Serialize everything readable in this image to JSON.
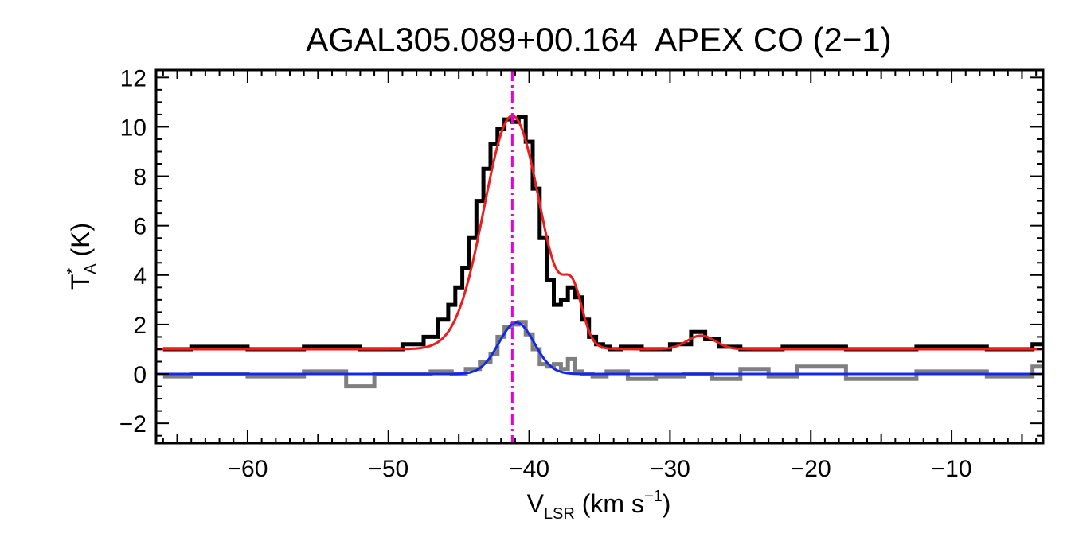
{
  "chart_data": {
    "type": "line",
    "title": "AGAL305.089+00.164  APEX CO (2−1)",
    "xlabel": {
      "main": "V",
      "sub": "LSR",
      "unit_open": " (km s",
      "sup": "−1",
      "unit_close": ")"
    },
    "ylabel": {
      "main": "T",
      "sup": "*",
      "sub": "A",
      "unit": " (K)"
    },
    "xlim": [
      -66.5,
      -3.5
    ],
    "ylim": [
      -2.8,
      12.3
    ],
    "xticks": [
      {
        "value": -60,
        "label": "−60"
      },
      {
        "value": -50,
        "label": "−50"
      },
      {
        "value": -40,
        "label": "−40"
      },
      {
        "value": -30,
        "label": "−30"
      },
      {
        "value": -20,
        "label": "−20"
      },
      {
        "value": -10,
        "label": "−10"
      }
    ],
    "yticks": [
      {
        "value": -2,
        "label": "−2"
      },
      {
        "value": 0,
        "label": "0"
      },
      {
        "value": 2,
        "label": "2"
      },
      {
        "value": 4,
        "label": "4"
      },
      {
        "value": 6,
        "label": "6"
      },
      {
        "value": 8,
        "label": "8"
      },
      {
        "value": 10,
        "label": "10"
      },
      {
        "value": 12,
        "label": "12"
      }
    ],
    "grid": false,
    "vline": {
      "x": -41.2,
      "color": "#e000e0",
      "style": "dash-dot"
    },
    "series": [
      {
        "kind": "spectrum",
        "color": "#000000",
        "x": [
          -66,
          -62,
          -58,
          -54,
          -50,
          -48,
          -47,
          -46,
          -45.5,
          -45,
          -44.5,
          -44,
          -43.5,
          -43,
          -42.5,
          -42,
          -41.5,
          -41,
          -40.5,
          -40,
          -39.5,
          -39,
          -38.5,
          -38,
          -37.5,
          -37,
          -36.5,
          -36,
          -35.5,
          -35,
          -34.5,
          -34,
          -33,
          -31,
          -29,
          -28,
          -27,
          -26,
          -24,
          -20,
          -15,
          -10,
          -5,
          -3.5
        ],
        "y": [
          1.0,
          1.1,
          1.0,
          1.1,
          1.0,
          1.2,
          1.5,
          2.2,
          2.8,
          3.5,
          4.3,
          5.5,
          7.0,
          8.3,
          9.3,
          9.9,
          10.3,
          10.2,
          10.4,
          9.4,
          7.5,
          5.5,
          3.8,
          2.8,
          3.0,
          3.5,
          3.1,
          2.2,
          1.5,
          1.2,
          1.1,
          1.0,
          1.1,
          1.0,
          1.2,
          1.7,
          1.4,
          1.1,
          1.0,
          1.1,
          1.0,
          1.1,
          1.0,
          1.2
        ]
      },
      {
        "kind": "spectrum",
        "color": "#7f7f7f",
        "x": [
          -66,
          -62,
          -58,
          -54,
          -52,
          -50,
          -48,
          -46,
          -45,
          -44,
          -43,
          -42.5,
          -42,
          -41.5,
          -41,
          -40.5,
          -40,
          -39.5,
          -39,
          -38.5,
          -38,
          -37.5,
          -37,
          -36.5,
          -36,
          -35,
          -34,
          -32,
          -30,
          -28,
          -26,
          -24,
          -22,
          -20,
          -15,
          -10,
          -5,
          -3.5
        ],
        "y": [
          -0.1,
          0.0,
          -0.1,
          0.1,
          -0.5,
          0.0,
          0.0,
          0.1,
          0.0,
          0.2,
          0.5,
          0.8,
          1.5,
          1.9,
          2.0,
          2.1,
          1.6,
          1.0,
          0.4,
          0.3,
          0.4,
          0.2,
          0.6,
          0.1,
          0.0,
          -0.1,
          0.1,
          -0.2,
          -0.1,
          0.0,
          -0.2,
          0.2,
          -0.1,
          0.3,
          -0.2,
          0.1,
          -0.1,
          0.3
        ]
      },
      {
        "kind": "fit",
        "color": "#ee1c1c",
        "baseline": 1.0,
        "components": [
          {
            "amp": 9.45,
            "center": -41.2,
            "sigma": 2.0
          },
          {
            "amp": 1.9,
            "center": -36.9,
            "sigma": 0.7
          },
          {
            "amp": 0.55,
            "center": -27.8,
            "sigma": 1.0
          }
        ]
      },
      {
        "kind": "fit",
        "color": "#1428e6",
        "baseline": 0.0,
        "components": [
          {
            "amp": 2.08,
            "center": -40.9,
            "sigma": 1.25
          }
        ]
      }
    ]
  }
}
